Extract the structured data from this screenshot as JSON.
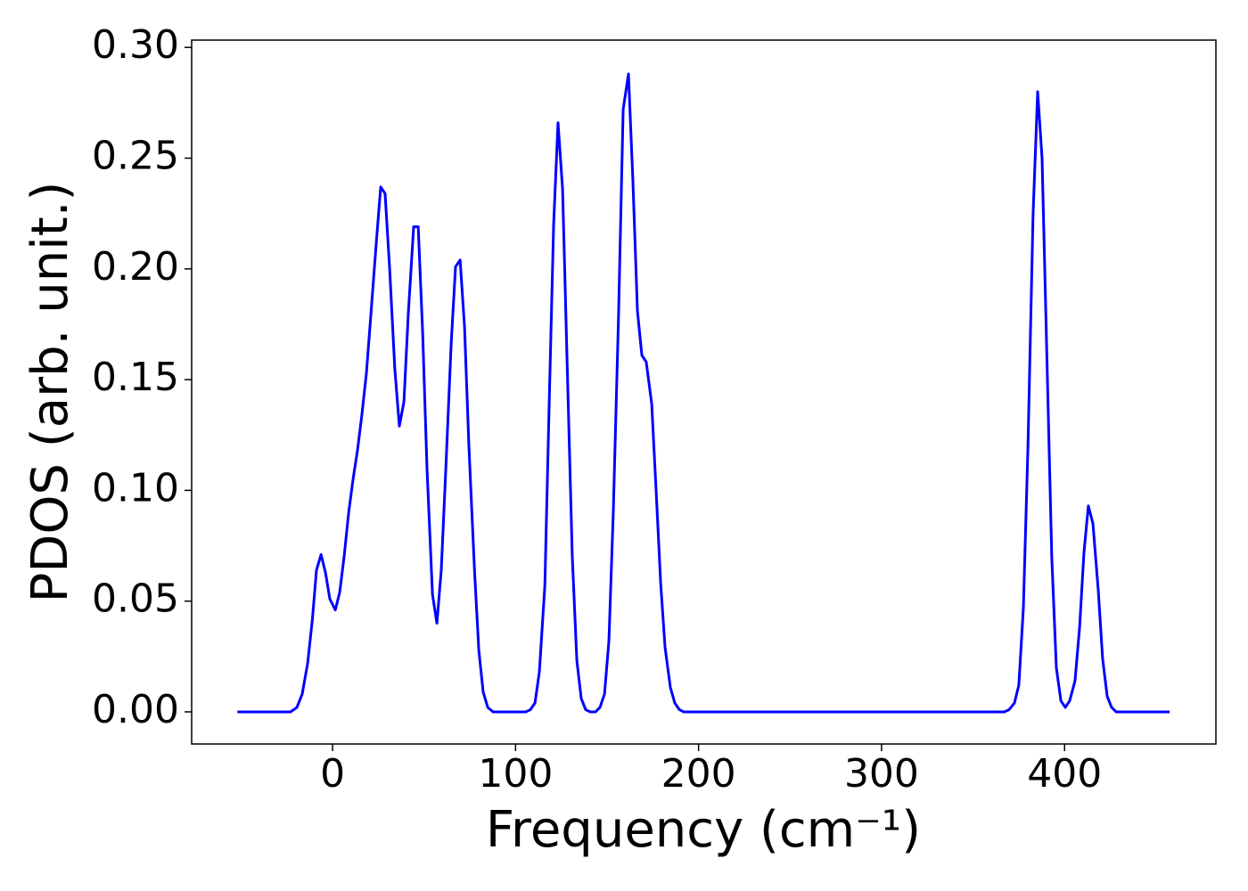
{
  "chart_data": {
    "type": "line",
    "x_label": "Frequency (cm⁻¹)",
    "y_label": "PDOS (arb. unit.)",
    "x": [
      -52,
      -23,
      -19.5,
      -16.6,
      -13.6,
      -11,
      -8.8,
      -6.3,
      -3.9,
      -1.5,
      1.5,
      3.9,
      6.3,
      8.8,
      11.2,
      13.6,
      16,
      18.5,
      21,
      24,
      26.3,
      28.7,
      31.2,
      34,
      36.5,
      39,
      41.4,
      44.3,
      46.8,
      49.2,
      51.6,
      54.6,
      57,
      59.4,
      61.9,
      64.8,
      67.2,
      69.7,
      72.1,
      74.5,
      77.5,
      79.9,
      82.3,
      84.8,
      87.7,
      105.7,
      108.1,
      110.6,
      113,
      116,
      118.4,
      120.8,
      123.2,
      125.7,
      128.1,
      131,
      133.5,
      135.9,
      138.3,
      140.8,
      143.7,
      146.1,
      148.6,
      151,
      153.4,
      156.3,
      158.8,
      161.7,
      164.1,
      166.6,
      169,
      171.4,
      174.4,
      176.8,
      179.3,
      181.7,
      184.6,
      187,
      189.5,
      191.9,
      367,
      369.7,
      372.6,
      375,
      377.5,
      380,
      382.8,
      385.3,
      387.7,
      390.2,
      393,
      395.5,
      398,
      400.4,
      402.8,
      405.7,
      408.2,
      410.6,
      413,
      415.5,
      418.4,
      420.8,
      423.3,
      425.7,
      428.2,
      457.4
    ],
    "series": [
      {
        "name": "PDOS",
        "color": "#0000ff",
        "values": [
          0,
          0,
          0.002,
          0.008,
          0.022,
          0.042,
          0.064,
          0.071,
          0.063,
          0.051,
          0.046,
          0.054,
          0.07,
          0.09,
          0.105,
          0.118,
          0.134,
          0.153,
          0.18,
          0.213,
          0.237,
          0.234,
          0.2,
          0.155,
          0.129,
          0.14,
          0.18,
          0.219,
          0.219,
          0.172,
          0.11,
          0.053,
          0.04,
          0.064,
          0.11,
          0.166,
          0.201,
          0.204,
          0.174,
          0.12,
          0.065,
          0.028,
          0.009,
          0.002,
          0,
          0,
          0.001,
          0.004,
          0.018,
          0.057,
          0.14,
          0.22,
          0.266,
          0.236,
          0.16,
          0.07,
          0.023,
          0.006,
          0.001,
          0,
          0,
          0.002,
          0.008,
          0.032,
          0.09,
          0.18,
          0.272,
          0.288,
          0.24,
          0.181,
          0.161,
          0.158,
          0.139,
          0.1,
          0.058,
          0.029,
          0.011,
          0.004,
          0.001,
          0,
          0,
          0.001,
          0.004,
          0.012,
          0.047,
          0.12,
          0.225,
          0.28,
          0.25,
          0.165,
          0.07,
          0.02,
          0.005,
          0.002,
          0.005,
          0.014,
          0.038,
          0.072,
          0.093,
          0.085,
          0.055,
          0.024,
          0.007,
          0.002,
          0,
          0
        ]
      }
    ],
    "xlim": [
      -77,
      482.7
    ],
    "ylim": [
      -0.0145,
      0.3033
    ],
    "xticks": [
      0,
      100,
      200,
      300,
      400
    ],
    "yticks": [
      {
        "value": 0,
        "label": "0.00"
      },
      {
        "value": 0.05,
        "label": "0.05"
      },
      {
        "value": 0.1,
        "label": "0.10"
      },
      {
        "value": 0.15,
        "label": "0.15"
      },
      {
        "value": 0.2,
        "label": "0.20"
      },
      {
        "value": 0.25,
        "label": "0.25"
      },
      {
        "value": 0.3,
        "label": "0.30"
      }
    ]
  }
}
